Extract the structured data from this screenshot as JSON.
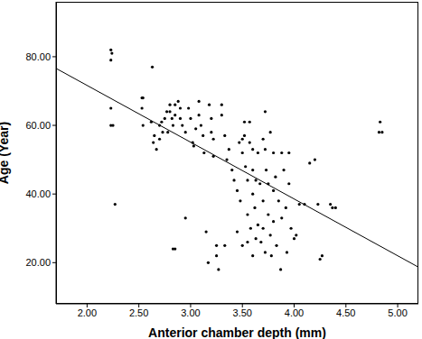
{
  "chart_data": {
    "type": "scatter",
    "x_label": "Anterior chamber depth (mm)",
    "y_label": "Age (Year)",
    "color": "#000000",
    "marker": "circle",
    "xlim": [
      1.7,
      5.2
    ],
    "ylim": [
      8,
      96
    ],
    "xticks": [
      {
        "value": 2,
        "label": "2.00"
      },
      {
        "value": 2.5,
        "label": "2.50"
      },
      {
        "value": 3,
        "label": "3.00"
      },
      {
        "value": 3.5,
        "label": "3.50"
      },
      {
        "value": 4,
        "label": "4.00"
      },
      {
        "value": 4.5,
        "label": "4.50"
      },
      {
        "value": 5,
        "label": "5.00"
      }
    ],
    "yticks": [
      {
        "value": 20,
        "label": "20.00"
      },
      {
        "value": 40,
        "label": "40.00"
      },
      {
        "value": 60,
        "label": "60.00"
      },
      {
        "value": 80,
        "label": "80.00"
      }
    ],
    "grid": false,
    "x": [
      2.23,
      2.24,
      2.23,
      2.23,
      2.23,
      2.25,
      2.27,
      2.53,
      2.54,
      2.53,
      2.54,
      2.63,
      2.62,
      2.65,
      2.64,
      2.67,
      2.7,
      2.7,
      2.72,
      2.73,
      2.75,
      2.77,
      2.78,
      2.8,
      2.8,
      2.82,
      2.83,
      2.85,
      2.85,
      2.83,
      2.85,
      2.88,
      2.9,
      2.9,
      2.92,
      2.95,
      2.95,
      2.98,
      3.0,
      3.02,
      3.03,
      3.05,
      3.08,
      3.08,
      3.1,
      3.12,
      3.13,
      3.15,
      3.17,
      3.18,
      3.2,
      3.2,
      3.22,
      3.22,
      3.25,
      3.27,
      3.25,
      3.3,
      3.3,
      3.33,
      3.33,
      3.35,
      3.37,
      3.4,
      3.42,
      3.45,
      3.45,
      3.47,
      3.48,
      3.5,
      3.5,
      3.5,
      3.52,
      3.52,
      3.53,
      3.55,
      3.55,
      3.55,
      3.57,
      3.57,
      3.58,
      3.6,
      3.6,
      3.6,
      3.6,
      3.62,
      3.63,
      3.63,
      3.65,
      3.65,
      3.67,
      3.68,
      3.7,
      3.7,
      3.7,
      3.72,
      3.72,
      3.72,
      3.73,
      3.75,
      3.75,
      3.77,
      3.77,
      3.78,
      3.8,
      3.8,
      3.8,
      3.82,
      3.83,
      3.85,
      3.87,
      3.88,
      3.88,
      3.9,
      3.92,
      3.93,
      3.95,
      3.95,
      3.97,
      4.0,
      4.02,
      4.05,
      4.1,
      4.15,
      4.2,
      4.23,
      4.25,
      4.27,
      4.35,
      4.37,
      4.4,
      4.82,
      4.83,
      4.85
    ],
    "y": [
      82,
      81,
      79,
      65,
      60,
      60,
      37,
      68,
      68,
      65,
      60,
      77,
      61,
      57,
      55,
      53,
      60,
      56,
      61,
      58,
      62,
      64,
      58,
      66,
      64,
      62,
      60,
      66,
      63,
      24,
      24,
      67,
      65,
      62,
      60,
      58,
      33,
      65,
      62,
      55,
      54,
      59,
      67,
      63,
      60,
      57,
      52,
      29,
      20,
      66,
      62,
      58,
      56,
      51,
      25,
      18,
      22,
      66,
      63,
      57,
      25,
      50,
      53,
      47,
      44,
      41,
      29,
      55,
      38,
      56,
      52,
      25,
      61,
      57,
      48,
      44,
      34,
      26,
      61,
      55,
      30,
      53,
      47,
      40,
      22,
      36,
      44,
      27,
      52,
      31,
      43,
      26,
      56,
      38,
      30,
      64,
      53,
      23,
      47,
      43,
      34,
      58,
      28,
      22,
      52,
      41,
      32,
      45,
      25,
      38,
      18,
      52,
      33,
      47,
      36,
      23,
      52,
      43,
      30,
      27,
      28,
      37,
      37,
      49,
      50,
      37,
      21,
      22,
      37,
      36,
      36,
      58,
      61,
      58
    ],
    "fit_line": {
      "x": [
        1.7,
        5.2
      ],
      "y": [
        76.6,
        18.7
      ],
      "color": "#000000"
    }
  }
}
